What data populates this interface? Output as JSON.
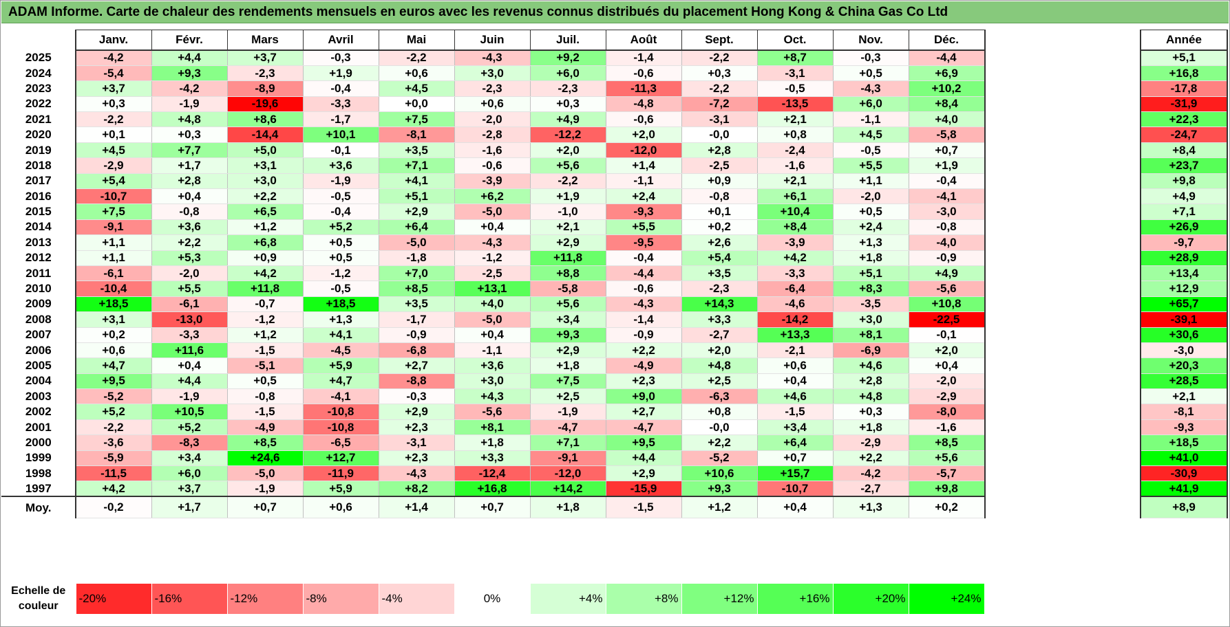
{
  "title": "ADAM Informe. Carte de chaleur des rendements mensuels en euros avec les revenus connus distribués du placement Hong Kong & China Gas Co Ltd",
  "colors": {
    "neg_max": "#ff0000",
    "zero": "#ffffff",
    "pos_max": "#00ff00",
    "title_bg": "#87c97c"
  },
  "chart_data": {
    "type": "heatmap",
    "title": "ADAM Informe. Carte de chaleur des rendements mensuels en euros avec les revenus connus distribués du placement Hong Kong & China Gas Co Ltd",
    "columns": [
      "Janv.",
      "Févr.",
      "Mars",
      "Avril",
      "Mai",
      "Juin",
      "Juil.",
      "Août",
      "Sept.",
      "Oct.",
      "Nov.",
      "Déc."
    ],
    "year_header": "Année",
    "rows": [
      {
        "year": "2025",
        "values": [
          "-4,2",
          "+4,4",
          "+3,7",
          "-0,3",
          "-2,2",
          "-4,3",
          "+9,2",
          "-1,4",
          "-2,2",
          "+8,7",
          "-0,3",
          "-4,4"
        ],
        "annual": "+5,1"
      },
      {
        "year": "2024",
        "values": [
          "-5,4",
          "+9,3",
          "-2,3",
          "+1,9",
          "+0,6",
          "+3,0",
          "+6,0",
          "-0,6",
          "+0,3",
          "-3,1",
          "+0,5",
          "+6,9"
        ],
        "annual": "+16,8"
      },
      {
        "year": "2023",
        "values": [
          "+3,7",
          "-4,2",
          "-8,9",
          "-0,4",
          "+4,5",
          "-2,3",
          "-2,3",
          "-11,3",
          "-2,2",
          "-0,5",
          "-4,3",
          "+10,2"
        ],
        "annual": "-17,8"
      },
      {
        "year": "2022",
        "values": [
          "+0,3",
          "-1,9",
          "-19,6",
          "-3,3",
          "+0,0",
          "+0,6",
          "+0,3",
          "-4,8",
          "-7,2",
          "-13,5",
          "+6,0",
          "+8,4"
        ],
        "annual": "-31,9"
      },
      {
        "year": "2021",
        "values": [
          "-2,2",
          "+4,8",
          "+8,6",
          "-1,7",
          "+7,5",
          "-2,0",
          "+4,9",
          "-0,6",
          "-3,1",
          "+2,1",
          "-1,1",
          "+4,0"
        ],
        "annual": "+22,3"
      },
      {
        "year": "2020",
        "values": [
          "+0,1",
          "+0,3",
          "-14,4",
          "+10,1",
          "-8,1",
          "-2,8",
          "-12,2",
          "+2,0",
          "-0,0",
          "+0,8",
          "+4,5",
          "-5,8"
        ],
        "annual": "-24,7"
      },
      {
        "year": "2019",
        "values": [
          "+4,5",
          "+7,7",
          "+5,0",
          "-0,1",
          "+3,5",
          "-1,6",
          "+2,0",
          "-12,0",
          "+2,8",
          "-2,4",
          "-0,5",
          "+0,7"
        ],
        "annual": "+8,4"
      },
      {
        "year": "2018",
        "values": [
          "-2,9",
          "+1,7",
          "+3,1",
          "+3,6",
          "+7,1",
          "-0,6",
          "+5,6",
          "+1,4",
          "-2,5",
          "-1,6",
          "+5,5",
          "+1,9"
        ],
        "annual": "+23,7"
      },
      {
        "year": "2017",
        "values": [
          "+5,4",
          "+2,8",
          "+3,0",
          "-1,9",
          "+4,1",
          "-3,9",
          "-2,2",
          "-1,1",
          "+0,9",
          "+2,1",
          "+1,1",
          "-0,4"
        ],
        "annual": "+9,8"
      },
      {
        "year": "2016",
        "values": [
          "-10,7",
          "+0,4",
          "+2,2",
          "-0,5",
          "+5,1",
          "+6,2",
          "+1,9",
          "+2,4",
          "-0,8",
          "+6,1",
          "-2,0",
          "-4,1"
        ],
        "annual": "+4,9"
      },
      {
        "year": "2015",
        "values": [
          "+7,5",
          "-0,8",
          "+6,5",
          "-0,4",
          "+2,9",
          "-5,0",
          "-1,0",
          "-9,3",
          "+0,1",
          "+10,4",
          "+0,5",
          "-3,0"
        ],
        "annual": "+7,1"
      },
      {
        "year": "2014",
        "values": [
          "-9,1",
          "+3,6",
          "+1,2",
          "+5,2",
          "+6,4",
          "+0,4",
          "+2,1",
          "+5,5",
          "+0,2",
          "+8,4",
          "+2,4",
          "-0,8"
        ],
        "annual": "+26,9"
      },
      {
        "year": "2013",
        "values": [
          "+1,1",
          "+2,2",
          "+6,8",
          "+0,5",
          "-5,0",
          "-4,3",
          "+2,9",
          "-9,5",
          "+2,6",
          "-3,9",
          "+1,3",
          "-4,0"
        ],
        "annual": "-9,7"
      },
      {
        "year": "2012",
        "values": [
          "+1,1",
          "+5,3",
          "+0,9",
          "+0,5",
          "-1,8",
          "-1,2",
          "+11,8",
          "-0,4",
          "+5,4",
          "+4,2",
          "+1,8",
          "-0,9"
        ],
        "annual": "+28,9"
      },
      {
        "year": "2011",
        "values": [
          "-6,1",
          "-2,0",
          "+4,2",
          "-1,2",
          "+7,0",
          "-2,5",
          "+8,8",
          "-4,4",
          "+3,5",
          "-3,3",
          "+5,1",
          "+4,9"
        ],
        "annual": "+13,4"
      },
      {
        "year": "2010",
        "values": [
          "-10,4",
          "+5,5",
          "+11,8",
          "-0,5",
          "+8,5",
          "+13,1",
          "-5,8",
          "-0,6",
          "-2,3",
          "-6,4",
          "+8,3",
          "-5,6"
        ],
        "annual": "+12,9"
      },
      {
        "year": "2009",
        "values": [
          "+18,5",
          "-6,1",
          "-0,7",
          "+18,5",
          "+3,5",
          "+4,0",
          "+5,6",
          "-4,3",
          "+14,3",
          "-4,6",
          "-3,5",
          "+10,8"
        ],
        "annual": "+65,7"
      },
      {
        "year": "2008",
        "values": [
          "+3,1",
          "-13,0",
          "-1,2",
          "+1,3",
          "-1,7",
          "-5,0",
          "+3,4",
          "-1,4",
          "+3,3",
          "-14,2",
          "+3,0",
          "-22,5"
        ],
        "annual": "-39,1"
      },
      {
        "year": "2007",
        "values": [
          "+0,2",
          "-3,3",
          "+1,2",
          "+4,1",
          "-0,9",
          "+0,4",
          "+9,3",
          "-0,9",
          "-2,7",
          "+13,3",
          "+8,1",
          "-0,1"
        ],
        "annual": "+30,6"
      },
      {
        "year": "2006",
        "values": [
          "+0,6",
          "+11,6",
          "-1,5",
          "-4,5",
          "-6,8",
          "-1,1",
          "+2,9",
          "+2,2",
          "+2,0",
          "-2,1",
          "-6,9",
          "+2,0"
        ],
        "annual": "-3,0"
      },
      {
        "year": "2005",
        "values": [
          "+4,7",
          "+0,4",
          "-5,1",
          "+5,9",
          "+2,7",
          "+3,6",
          "+1,8",
          "-4,9",
          "+4,8",
          "+0,6",
          "+4,6",
          "+0,4"
        ],
        "annual": "+20,3"
      },
      {
        "year": "2004",
        "values": [
          "+9,5",
          "+4,4",
          "+0,5",
          "+4,7",
          "-8,8",
          "+3,0",
          "+7,5",
          "+2,3",
          "+2,5",
          "+0,4",
          "+2,8",
          "-2,0"
        ],
        "annual": "+28,5"
      },
      {
        "year": "2003",
        "values": [
          "-5,2",
          "-1,9",
          "-0,8",
          "-4,1",
          "-0,3",
          "+4,3",
          "+2,5",
          "+9,0",
          "-6,3",
          "+4,6",
          "+4,8",
          "-2,9"
        ],
        "annual": "+2,1"
      },
      {
        "year": "2002",
        "values": [
          "+5,2",
          "+10,5",
          "-1,5",
          "-10,8",
          "+2,9",
          "-5,6",
          "-1,9",
          "+2,7",
          "+0,8",
          "-1,5",
          "+0,3",
          "-8,0"
        ],
        "annual": "-8,1"
      },
      {
        "year": "2001",
        "values": [
          "-2,2",
          "+5,2",
          "-4,9",
          "-10,8",
          "+2,3",
          "+8,1",
          "-4,7",
          "-4,7",
          "-0,0",
          "+3,4",
          "+1,8",
          "-1,6"
        ],
        "annual": "-9,3"
      },
      {
        "year": "2000",
        "values": [
          "-3,6",
          "-8,3",
          "+8,5",
          "-6,5",
          "-3,1",
          "+1,8",
          "+7,1",
          "+9,5",
          "+2,2",
          "+6,4",
          "-2,9",
          "+8,5"
        ],
        "annual": "+18,5"
      },
      {
        "year": "1999",
        "values": [
          "-5,9",
          "+3,4",
          "+24,6",
          "+12,7",
          "+2,3",
          "+3,3",
          "-9,1",
          "+4,4",
          "-5,2",
          "+0,7",
          "+2,2",
          "+5,6"
        ],
        "annual": "+41,0"
      },
      {
        "year": "1998",
        "values": [
          "-11,5",
          "+6,0",
          "-5,0",
          "-11,9",
          "-4,3",
          "-12,4",
          "-12,0",
          "+2,9",
          "+10,6",
          "+15,7",
          "-4,2",
          "-5,7"
        ],
        "annual": "-30,9"
      },
      {
        "year": "1997",
        "values": [
          "+4,2",
          "+3,7",
          "-1,9",
          "+5,9",
          "+8,2",
          "+16,8",
          "+14,2",
          "-15,9",
          "+9,3",
          "-10,7",
          "-2,7",
          "+9,8"
        ],
        "annual": "+41,9"
      }
    ],
    "average": {
      "label": "Moy.",
      "values": [
        "-0,2",
        "+1,7",
        "+0,7",
        "+0,6",
        "+1,4",
        "+0,7",
        "+1,8",
        "-1,5",
        "+1,2",
        "+0,4",
        "+1,3",
        "+0,2"
      ],
      "annual": "+8,9"
    },
    "scale": {
      "label_line1": "Echelle de",
      "label_line2": "couleur",
      "steps": [
        {
          "label": "-20%",
          "value": -20,
          "align": "neg"
        },
        {
          "label": "-16%",
          "value": -16,
          "align": "neg"
        },
        {
          "label": "-12%",
          "value": -12,
          "align": "neg"
        },
        {
          "label": "-8%",
          "value": -8,
          "align": "neg"
        },
        {
          "label": "-4%",
          "value": -4,
          "align": "neg"
        },
        {
          "label": "0%",
          "value": 0,
          "align": "zero"
        },
        {
          "label": "+4%",
          "value": 4,
          "align": "pos"
        },
        {
          "label": "+8%",
          "value": 8,
          "align": "pos"
        },
        {
          "label": "+12%",
          "value": 12,
          "align": "pos"
        },
        {
          "label": "+16%",
          "value": 16,
          "align": "pos"
        },
        {
          "label": "+20%",
          "value": 20,
          "align": "pos"
        },
        {
          "label": "+24%",
          "value": 24,
          "align": "pos"
        }
      ]
    }
  }
}
